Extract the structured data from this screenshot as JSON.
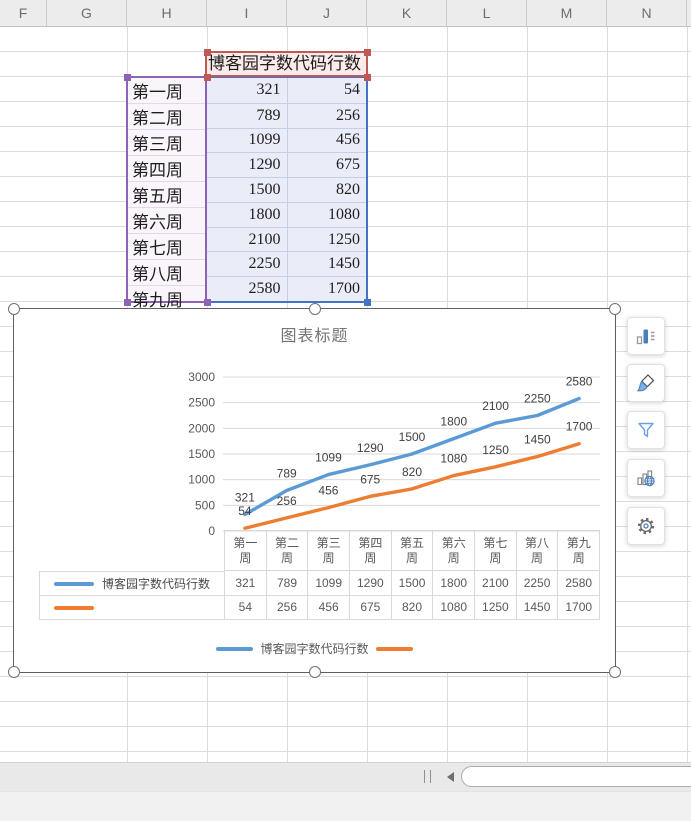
{
  "grid": {
    "column_headers": [
      "F",
      "G",
      "H",
      "I",
      "J",
      "K",
      "L",
      "M",
      "N"
    ]
  },
  "sheet": {
    "header_cells": [
      "博客园字数",
      "代码行数"
    ],
    "week_rows": [
      {
        "label": "第一周",
        "words": "321",
        "code": "54"
      },
      {
        "label": "第二周",
        "words": "789",
        "code": "256"
      },
      {
        "label": "第三周",
        "words": "1099",
        "code": "456"
      },
      {
        "label": "第四周",
        "words": "1290",
        "code": "675"
      },
      {
        "label": "第五周",
        "words": "1500",
        "code": "820"
      },
      {
        "label": "第六周",
        "words": "1800",
        "code": "1080"
      },
      {
        "label": "第七周",
        "words": "2100",
        "code": "1250"
      },
      {
        "label": "第八周",
        "words": "2250",
        "code": "1450"
      },
      {
        "label": "第九周",
        "words": "2580",
        "code": "1700"
      }
    ]
  },
  "chart_data": {
    "type": "line",
    "title": "图表标题",
    "categories": [
      "第一周",
      "第二周",
      "第三周",
      "第四周",
      "第五周",
      "第六周",
      "第七周",
      "第八周",
      "第九周"
    ],
    "series": [
      {
        "name": "博客园字数代码行数",
        "color": "#5B9BD5",
        "values": [
          321,
          789,
          1099,
          1290,
          1500,
          1800,
          2100,
          2250,
          2580
        ]
      },
      {
        "name": "",
        "color": "#ED7D31",
        "values": [
          54,
          256,
          456,
          675,
          820,
          1080,
          1250,
          1450,
          1700
        ]
      }
    ],
    "xlabel": "",
    "ylabel": "",
    "ylim": [
      0,
      3000
    ],
    "yticks": [
      0,
      500,
      1000,
      1500,
      2000,
      2500,
      3000
    ],
    "grid": true,
    "data_labels": true,
    "data_table": true,
    "legend_position": "bottom"
  },
  "side_toolbar": {
    "buttons": [
      {
        "icon": "chart-elements-icon"
      },
      {
        "icon": "brush-icon"
      },
      {
        "icon": "filter-icon"
      },
      {
        "icon": "chart-globe-icon"
      },
      {
        "icon": "gear-icon"
      }
    ]
  },
  "colors": {
    "series1": "#5B9BD5",
    "series2": "#ED7D31",
    "header_range_border": "#BE5A55",
    "label_range_border": "#8E63B5",
    "data_range_border": "#4472C4",
    "gridline": "#DCDCDC"
  }
}
